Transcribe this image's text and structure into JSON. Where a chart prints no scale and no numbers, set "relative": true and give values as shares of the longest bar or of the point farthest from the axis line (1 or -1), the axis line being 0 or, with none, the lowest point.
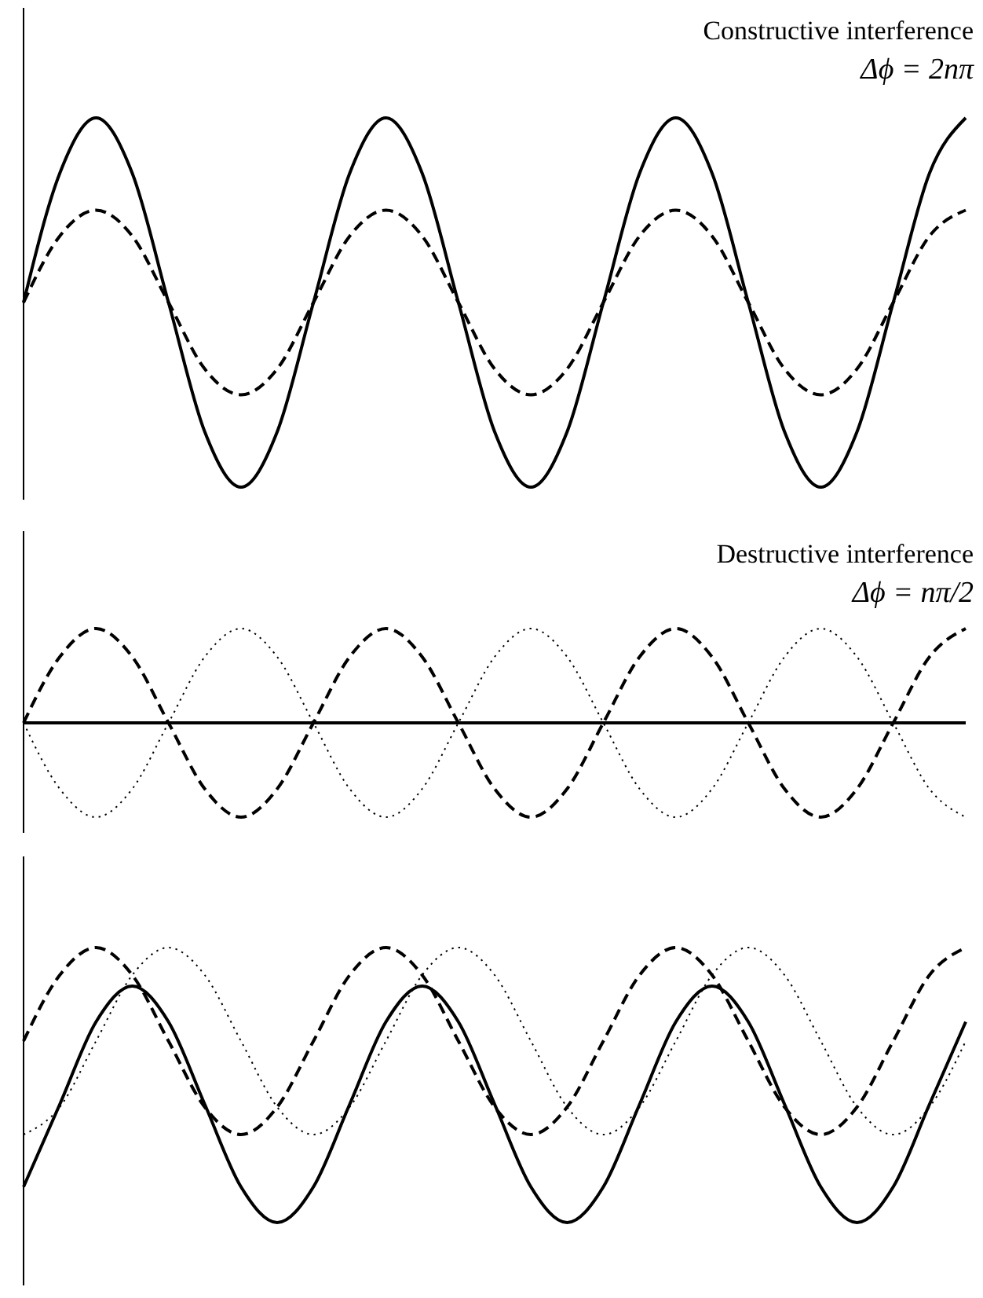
{
  "chart_data": [
    {
      "type": "line",
      "relative": true,
      "marker": "none",
      "annotations": [
        "Constructive interference",
        "Δϕ = 2nπ"
      ],
      "categories": [
        null,
        null,
        null,
        null,
        null,
        null,
        null,
        null,
        null,
        null,
        null,
        null,
        null,
        null,
        null,
        null,
        null,
        null,
        null,
        null,
        null,
        null,
        null,
        null,
        null,
        null,
        null
      ],
      "series": [
        {
          "color": "#000000",
          "line_style": "solid",
          "values": [
            0.5,
            0.85,
            1,
            0.85,
            0.5,
            0.15,
            0,
            0.15,
            0.5,
            0.85,
            1,
            0.85,
            0.5,
            0.15,
            0,
            0.15,
            0.5,
            0.85,
            1,
            0.85,
            0.5,
            0.15,
            0,
            0.15,
            0.5,
            0.85,
            1
          ]
        },
        {
          "color": "#000000",
          "line_style": "dashed",
          "values": [
            0.5,
            0.68,
            0.75,
            0.68,
            0.5,
            0.32,
            0.25,
            0.32,
            0.5,
            0.68,
            0.75,
            0.68,
            0.5,
            0.32,
            0.25,
            0.32,
            0.5,
            0.68,
            0.75,
            0.68,
            0.5,
            0.32,
            0.25,
            0.32,
            0.5,
            0.68,
            0.75
          ]
        }
      ]
    },
    {
      "type": "line",
      "relative": true,
      "marker": "none",
      "annotations": [
        "Destructive interference",
        "Δϕ = nπ/2"
      ],
      "categories": [
        null,
        null,
        null,
        null,
        null,
        null,
        null,
        null,
        null,
        null,
        null,
        null,
        null,
        null,
        null,
        null,
        null,
        null,
        null,
        null,
        null,
        null,
        null,
        null,
        null,
        null,
        null
      ],
      "series": [
        {
          "color": "#000000",
          "line_style": "dashed",
          "values": [
            0.5,
            0.85,
            1,
            0.85,
            0.5,
            0.15,
            0,
            0.15,
            0.5,
            0.85,
            1,
            0.85,
            0.5,
            0.15,
            0,
            0.15,
            0.5,
            0.85,
            1,
            0.85,
            0.5,
            0.15,
            0,
            0.15,
            0.5,
            0.85,
            1
          ]
        },
        {
          "color": "#000000",
          "line_style": "dotted",
          "values": [
            0.5,
            0.15,
            0,
            0.15,
            0.5,
            0.85,
            1,
            0.85,
            0.5,
            0.15,
            0,
            0.15,
            0.5,
            0.85,
            1,
            0.85,
            0.5,
            0.15,
            0,
            0.15,
            0.5,
            0.85,
            1,
            0.85,
            0.5,
            0.15,
            0
          ]
        },
        {
          "color": "#000000",
          "line_style": "solid",
          "values": [
            0.5,
            0.5,
            0.5,
            0.5,
            0.5,
            0.5,
            0.5,
            0.5,
            0.5,
            0.5,
            0.5,
            0.5,
            0.5,
            0.5,
            0.5,
            0.5,
            0.5,
            0.5,
            0.5,
            0.5,
            0.5,
            0.5,
            0.5,
            0.5,
            0.5,
            0.5,
            0.5
          ]
        }
      ]
    },
    {
      "type": "line",
      "relative": true,
      "marker": "none",
      "categories": [
        null,
        null,
        null,
        null,
        null,
        null,
        null,
        null,
        null,
        null,
        null,
        null,
        null,
        null,
        null,
        null,
        null,
        null,
        null,
        null,
        null,
        null,
        null,
        null,
        null,
        null,
        null
      ],
      "series": [
        {
          "color": "#000000",
          "line_style": "solid",
          "values": [
            0.13,
            0.43,
            0.73,
            0.86,
            0.73,
            0.43,
            0.13,
            0,
            0.13,
            0.43,
            0.73,
            0.86,
            0.73,
            0.43,
            0.13,
            0,
            0.13,
            0.43,
            0.73,
            0.86,
            0.73,
            0.43,
            0.13,
            0,
            0.13,
            0.43,
            0.73
          ]
        },
        {
          "color": "#000000",
          "line_style": "dashed",
          "values": [
            0.66,
            0.9,
            1,
            0.9,
            0.66,
            0.42,
            0.32,
            0.42,
            0.66,
            0.9,
            1,
            0.9,
            0.66,
            0.42,
            0.32,
            0.42,
            0.66,
            0.9,
            1,
            0.9,
            0.66,
            0.42,
            0.32,
            0.42,
            0.66,
            0.9,
            1
          ]
        },
        {
          "color": "#000000",
          "line_style": "dotted",
          "values": [
            0.32,
            0.42,
            0.66,
            0.9,
            1,
            0.9,
            0.66,
            0.42,
            0.32,
            0.42,
            0.66,
            0.9,
            1,
            0.9,
            0.66,
            0.42,
            0.32,
            0.42,
            0.66,
            0.9,
            1,
            0.9,
            0.66,
            0.42,
            0.32,
            0.42,
            0.66
          ]
        }
      ]
    }
  ]
}
